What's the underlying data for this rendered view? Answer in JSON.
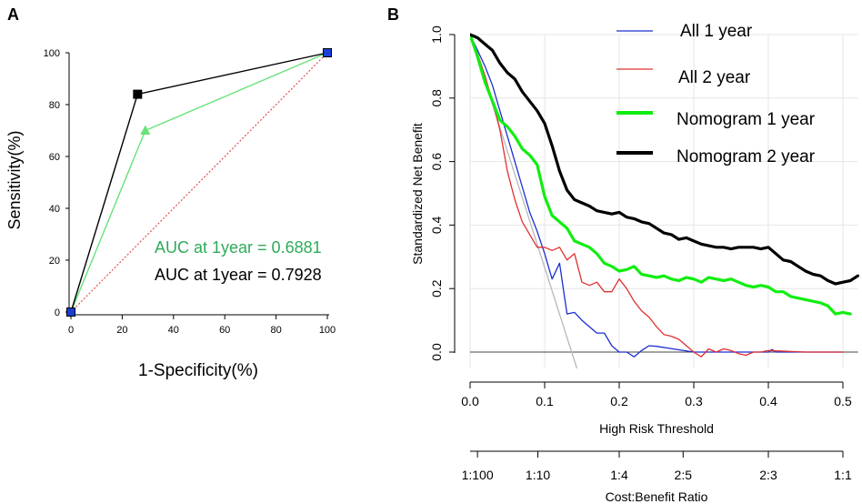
{
  "chart_data": [
    {
      "type": "line",
      "panel_label": "A",
      "xlabel": "1-Specificity(%)",
      "ylabel": "Sensitivity(%)",
      "xlim": [
        0,
        100
      ],
      "ylim": [
        0,
        100
      ],
      "xticks": [
        0,
        20,
        40,
        60,
        80,
        100
      ],
      "yticks": [
        0,
        20,
        40,
        60,
        80,
        100
      ],
      "series": [
        {
          "name": "AUC 0.7928 curve",
          "color": "#000000",
          "marker": "square",
          "x": [
            0,
            26,
            100
          ],
          "y": [
            0,
            84,
            100
          ]
        },
        {
          "name": "AUC 0.6881 curve",
          "color": "#66e27a",
          "marker": "triangle",
          "x": [
            0,
            29,
            100
          ],
          "y": [
            0,
            70,
            100
          ]
        },
        {
          "name": "reference",
          "color": "#e05050",
          "style": "dotted",
          "x": [
            0,
            100
          ],
          "y": [
            0,
            100
          ]
        }
      ],
      "endpoint_marker_color": "#1a3fd6",
      "annotations": [
        {
          "text": "AUC at 1year = 0.6881",
          "color": "#2faa5a"
        },
        {
          "text": "AUC at 1year = 0.7928",
          "color": "#000000"
        }
      ]
    },
    {
      "type": "line",
      "panel_label": "B",
      "xlabel": "High Risk Threshold",
      "ylabel": "Standardized Net Benefit",
      "x2label": "Cost:Benefit Ratio",
      "xlim": [
        0,
        0.52
      ],
      "ylim": [
        -0.05,
        1.0
      ],
      "xticks": [
        0.0,
        0.1,
        0.2,
        0.3,
        0.4,
        0.5
      ],
      "xtick_labels": [
        "0.0",
        "0.1",
        "0.2",
        "0.3",
        "0.4",
        "0.5"
      ],
      "yticks": [
        0.0,
        0.2,
        0.4,
        0.6,
        0.8,
        1.0
      ],
      "ytick_labels": [
        "0.0",
        "0.2",
        "0.4",
        "0.6",
        "0.8",
        "1.0"
      ],
      "x2ticks": [
        0.0099,
        0.0909,
        0.2,
        0.2857,
        0.4,
        0.5
      ],
      "x2tick_labels": [
        "1:100",
        "1:10",
        "1:4",
        "2:5",
        "2:3",
        "1:1"
      ],
      "legend": [
        "All 1 year",
        "All 2 year",
        "Nomogram 1 year",
        "Nomogram 2 year"
      ],
      "series": [
        {
          "name": "All 1 year",
          "color": "#1a2fd0",
          "width": 1.3,
          "x": [
            0.0,
            0.01,
            0.02,
            0.03,
            0.04,
            0.05,
            0.06,
            0.07,
            0.08,
            0.09,
            0.1,
            0.105,
            0.11,
            0.12,
            0.13,
            0.14,
            0.15,
            0.16,
            0.17,
            0.18,
            0.19,
            0.2,
            0.21,
            0.22,
            0.23,
            0.24,
            0.25,
            0.3,
            0.35,
            0.4,
            0.405,
            0.41,
            0.5
          ],
          "y": [
            1.0,
            0.95,
            0.9,
            0.84,
            0.76,
            0.68,
            0.6,
            0.52,
            0.44,
            0.38,
            0.31,
            0.27,
            0.23,
            0.28,
            0.12,
            0.125,
            0.1,
            0.08,
            0.06,
            0.06,
            0.02,
            0.0,
            0.0,
            -0.015,
            0.005,
            0.02,
            0.018,
            0.0,
            0.0,
            0.0,
            0.008,
            0.0,
            0.0
          ]
        },
        {
          "name": "All 2 year",
          "color": "#e03030",
          "width": 1.3,
          "x": [
            0.0,
            0.01,
            0.02,
            0.03,
            0.04,
            0.05,
            0.06,
            0.07,
            0.08,
            0.09,
            0.1,
            0.11,
            0.12,
            0.13,
            0.14,
            0.15,
            0.16,
            0.17,
            0.18,
            0.19,
            0.2,
            0.21,
            0.22,
            0.23,
            0.24,
            0.25,
            0.26,
            0.27,
            0.28,
            0.29,
            0.3,
            0.31,
            0.32,
            0.33,
            0.34,
            0.35,
            0.36,
            0.37,
            0.38,
            0.39,
            0.4,
            0.45,
            0.5
          ],
          "y": [
            1.0,
            0.94,
            0.87,
            0.79,
            0.7,
            0.57,
            0.48,
            0.41,
            0.37,
            0.33,
            0.33,
            0.32,
            0.33,
            0.29,
            0.31,
            0.22,
            0.21,
            0.22,
            0.19,
            0.19,
            0.23,
            0.2,
            0.16,
            0.13,
            0.11,
            0.08,
            0.055,
            0.05,
            0.04,
            0.02,
            0.0,
            -0.015,
            0.01,
            0.0,
            0.01,
            0.005,
            -0.005,
            -0.01,
            0.0,
            0.0,
            0.005,
            0.0,
            0.0
          ]
        },
        {
          "name": "Nomogram 1 year",
          "color": "#10ee10",
          "width": 3.2,
          "x": [
            0.0,
            0.01,
            0.02,
            0.03,
            0.04,
            0.05,
            0.06,
            0.07,
            0.08,
            0.09,
            0.1,
            0.11,
            0.12,
            0.13,
            0.14,
            0.15,
            0.16,
            0.17,
            0.18,
            0.19,
            0.2,
            0.21,
            0.22,
            0.23,
            0.24,
            0.25,
            0.26,
            0.27,
            0.28,
            0.29,
            0.3,
            0.31,
            0.32,
            0.33,
            0.34,
            0.35,
            0.36,
            0.37,
            0.38,
            0.39,
            0.4,
            0.41,
            0.42,
            0.43,
            0.44,
            0.45,
            0.46,
            0.47,
            0.48,
            0.49,
            0.5,
            0.51
          ],
          "y": [
            1.0,
            0.93,
            0.85,
            0.79,
            0.73,
            0.71,
            0.68,
            0.64,
            0.62,
            0.59,
            0.49,
            0.43,
            0.41,
            0.39,
            0.35,
            0.34,
            0.33,
            0.31,
            0.28,
            0.27,
            0.255,
            0.26,
            0.27,
            0.245,
            0.24,
            0.235,
            0.24,
            0.23,
            0.225,
            0.235,
            0.23,
            0.22,
            0.235,
            0.23,
            0.225,
            0.23,
            0.22,
            0.21,
            0.205,
            0.21,
            0.205,
            0.19,
            0.19,
            0.175,
            0.17,
            0.165,
            0.16,
            0.155,
            0.145,
            0.12,
            0.125,
            0.12
          ]
        },
        {
          "name": "Nomogram 2 year",
          "color": "#000000",
          "width": 3.2,
          "x": [
            0.0,
            0.01,
            0.02,
            0.03,
            0.04,
            0.05,
            0.06,
            0.07,
            0.08,
            0.09,
            0.1,
            0.11,
            0.12,
            0.13,
            0.14,
            0.15,
            0.16,
            0.17,
            0.18,
            0.19,
            0.2,
            0.21,
            0.22,
            0.23,
            0.24,
            0.25,
            0.26,
            0.27,
            0.28,
            0.29,
            0.3,
            0.31,
            0.32,
            0.33,
            0.34,
            0.35,
            0.36,
            0.37,
            0.38,
            0.39,
            0.4,
            0.41,
            0.42,
            0.43,
            0.44,
            0.45,
            0.46,
            0.47,
            0.48,
            0.49,
            0.5,
            0.51,
            0.52
          ],
          "y": [
            1.0,
            0.99,
            0.97,
            0.95,
            0.91,
            0.88,
            0.86,
            0.82,
            0.79,
            0.76,
            0.72,
            0.65,
            0.57,
            0.51,
            0.48,
            0.47,
            0.46,
            0.445,
            0.44,
            0.435,
            0.44,
            0.425,
            0.42,
            0.41,
            0.405,
            0.39,
            0.375,
            0.37,
            0.355,
            0.36,
            0.35,
            0.34,
            0.335,
            0.33,
            0.33,
            0.325,
            0.33,
            0.33,
            0.33,
            0.325,
            0.33,
            0.31,
            0.29,
            0.285,
            0.27,
            0.255,
            0.245,
            0.24,
            0.225,
            0.215,
            0.22,
            0.225,
            0.24
          ]
        },
        {
          "name": "Treat all (gray)",
          "color": "#b8b8b8",
          "width": 1.3,
          "x": [
            0.0,
            0.143
          ],
          "y": [
            1.0,
            -0.05
          ]
        },
        {
          "name": "Treat none",
          "color": "#444444",
          "width": 1.0,
          "x": [
            0.0,
            0.52
          ],
          "y": [
            0.0,
            0.0
          ]
        }
      ]
    }
  ]
}
